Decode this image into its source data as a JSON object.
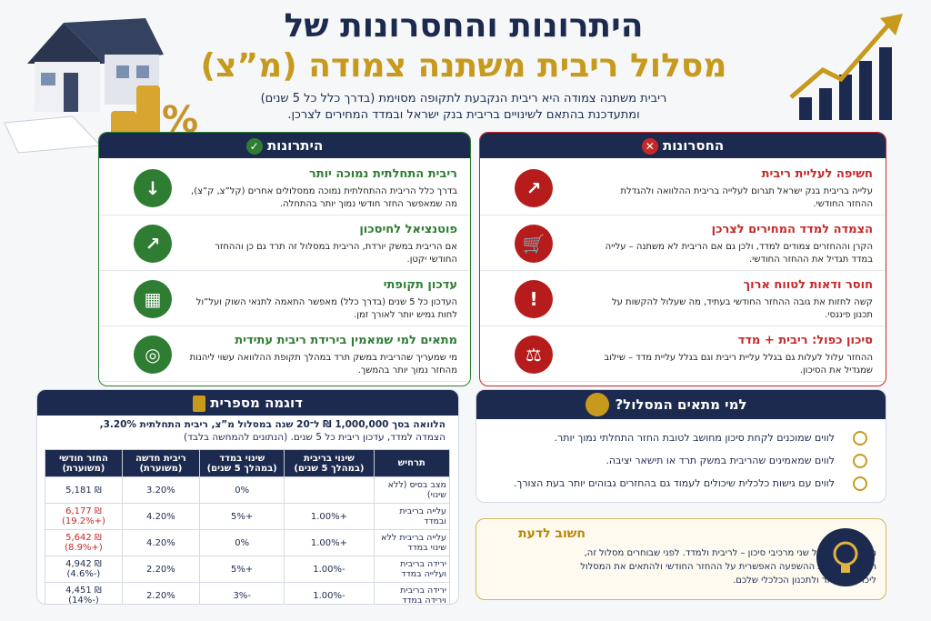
{
  "header": {
    "title_lines": [
      "היתרונות והחסרונות של",
      "מסלול ריבית משתנה צמודה (מ”צ)"
    ],
    "subtitle_lines": [
      "ריבית משתנה צמודה היא ריבית הנקבעת לתקופה מסוימת (בדרך כלל כל 5 שנים)",
      "ומתעדכנת בהתאם לשינויים בריבית בנק ישראל ובמדד המחירים לצרכן."
    ]
  },
  "advantages": {
    "title": "היתרונות",
    "items": [
      {
        "title": "ריבית התחלתית נמוכה יותר",
        "text": "בדרך כלל הריבית ההתחלתית נמוכה ממסלולים אחרים (קל”צ, ק”צ), מה שמאפשר החזר חודשי נמוך יותר בהתחלה."
      },
      {
        "title": "פוטנציאל לחיסכון",
        "text": "אם הריבית במשק יורדת, הריבית במסלול זה תרד גם כן וההחזר החודשי יקטן."
      },
      {
        "title": "עדכון תקופתי",
        "text": "העדכון כל 5 שנים (בדרך כלל) מאפשר התאמה לתנאי השוק ועל”ול לחות גמיש יותר לאורך זמן."
      },
      {
        "title": "מתאים למי שמאמין בירידת ריבית עתידית",
        "text": "מי שמעריך שהריבית במשק תרד במהלך תקופת ההלוואה עשוי ליהנות מהחזר נמוך יותר בהמשך."
      }
    ]
  },
  "disadvantages": {
    "title": "החסרונות",
    "items": [
      {
        "title": "חשיפה לעליית ריבית",
        "text": "עלייה בריבית בנק ישראל תגרום לעלייה בריבית ההלוואה ולהגדלת ההחזר החודשי."
      },
      {
        "title": "הצמדה למדד המחירים לצרכן",
        "text": "הקרן וההחזרים צמודים למדד, ולכן גם אם הריבית לא משתנה – עלייה במדד תגדיל את ההחזר החודשי."
      },
      {
        "title": "חוסר ודאות לטווח ארוך",
        "text": "קשה לחזות את גובה ההחזר החודשי בעתיד, מה שעלול להקשות על תכנון פיננסי."
      },
      {
        "title": "סיכון כפול: ריבית + מדד",
        "text": "ההחזר עלול לעלות גם בגלל עליית ריבית וגם בגלל עליית מדד – שילוב שמגדיל את הסיכון."
      }
    ]
  },
  "example": {
    "title": "דוגמה מספרית",
    "intro_lines": [
      "הלוואה בסך 1,000,000 ₪ ל־20 שנה במסלול מ”צ, ריבית התחלתית 3.20%,",
      "הצמדה למדד, עדכון ריבית כל 5 שנים. (הנתונים להמחשה בלבד)"
    ],
    "table": {
      "headers": [
        "תרחיש",
        "שינוי בריבית (במהלך 5 שנים)",
        "שינוי במדד (במהלך 5 שנים)",
        "ריבית חדשה (משוערת)",
        "החזר חודשי (משוערת)"
      ],
      "rows": [
        [
          "מצב בסיס (ללא שינוי)",
          null,
          "0%",
          "3.20%",
          "₪ 5,181",
          null
        ],
        [
          "עלייה בריבית ובמדד",
          "+1.00%",
          "+5%",
          "4.20%",
          "₪ 6,177",
          "(+19.2%)"
        ],
        [
          "עלייה בריבית ללא שינוי במדד",
          "+1.00%",
          "0%",
          "4.20%",
          "₪ 5,642",
          "(+8.9%)"
        ],
        [
          "ירידה בריבית ועלייה במדד",
          "-1.00%",
          "+5%",
          "2.20%",
          "₪ 4,942",
          "(-4.6%)"
        ],
        [
          "ירידה בריבית וירידה במדד",
          "-1.00%",
          "-3%",
          "2.20%",
          "₪ 4,451",
          "(-14%)"
        ]
      ]
    }
  },
  "suitability": {
    "title": "למי מתאים המסלול?",
    "items": [
      "לווים שמוכנים לקחת סיכון מחושב לטובת החזר התחלתי נמוך יותר.",
      "לווים שמאמינים שהריבית במשק תרד או תישאר יציבה.",
      "לווים עם גישות כלכלית שיכולים לעמוד גם בהחזרים גבוהים יותר בעת הצורך."
    ]
  },
  "important": {
    "title": "חשוב לדעת",
    "text": "מסלול מ”צ כולל שני מרכיבי סיכון – לריבית ולמדד. לפני שבוחרים מסלול זה, חשוב להבין את ההשפעה האפשרית על ההחזר החודשי ולהתאים את המסלול ליכולת ההחזר ולתכנון הכלכלי שלכם."
  }
}
